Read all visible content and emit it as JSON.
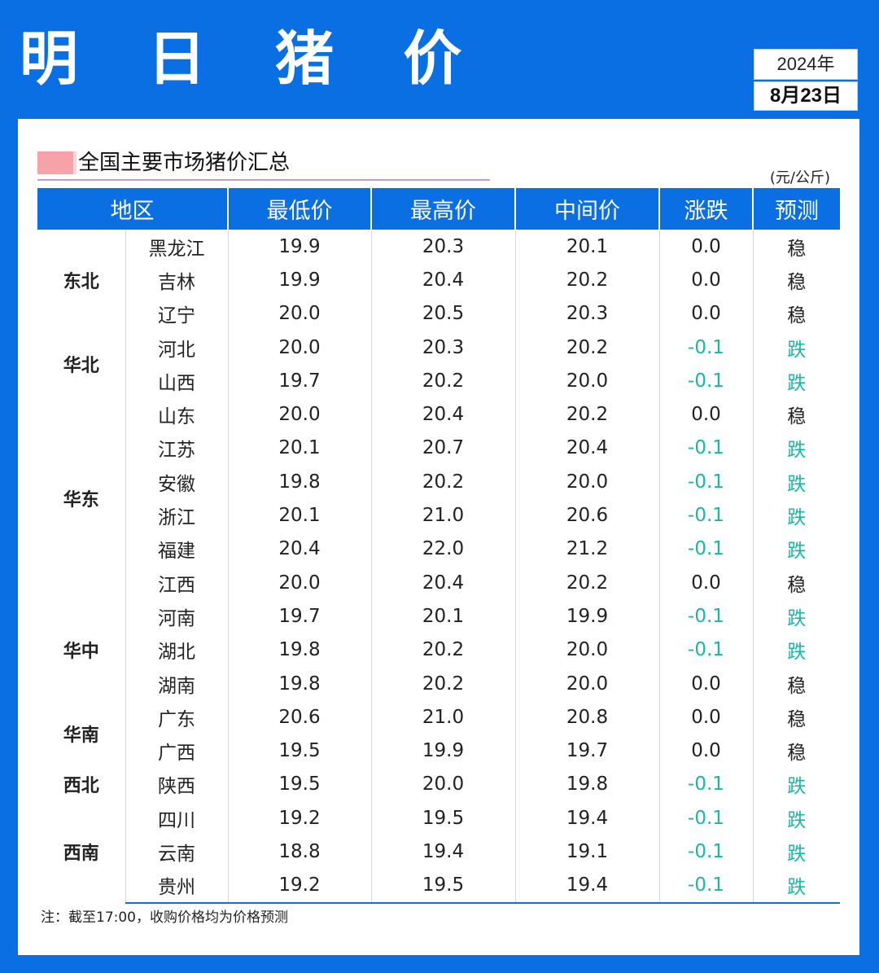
{
  "title": "明 日 猪 价",
  "date": {
    "year": "2024年",
    "day": "8月23日"
  },
  "section_title": "全国主要市场猪价汇总",
  "unit": "(元/公斤)",
  "colors": {
    "accent": "#0a6fe3",
    "down": "#17b7a6",
    "swatch": "#f5a3a8"
  },
  "columns": [
    "地区",
    "最低价",
    "最高价",
    "中间价",
    "涨跌",
    "预测"
  ],
  "rows": [
    {
      "region": "东北",
      "span": 3,
      "province": "黑龙江",
      "low": "19.9",
      "high": "20.3",
      "mid": "20.1",
      "change": "0.0",
      "forecast": "稳"
    },
    {
      "province": "吉林",
      "low": "19.9",
      "high": "20.4",
      "mid": "20.2",
      "change": "0.0",
      "forecast": "稳"
    },
    {
      "province": "辽宁",
      "low": "20.0",
      "high": "20.5",
      "mid": "20.3",
      "change": "0.0",
      "forecast": "稳"
    },
    {
      "region": "华北",
      "span": 2,
      "province": "河北",
      "low": "20.0",
      "high": "20.3",
      "mid": "20.2",
      "change": "-0.1",
      "forecast": "跌"
    },
    {
      "province": "山西",
      "low": "19.7",
      "high": "20.2",
      "mid": "20.0",
      "change": "-0.1",
      "forecast": "跌"
    },
    {
      "region": "华东",
      "span": 6,
      "province": "山东",
      "low": "20.0",
      "high": "20.4",
      "mid": "20.2",
      "change": "0.0",
      "forecast": "稳"
    },
    {
      "province": "江苏",
      "low": "20.1",
      "high": "20.7",
      "mid": "20.4",
      "change": "-0.1",
      "forecast": "跌"
    },
    {
      "province": "安徽",
      "low": "19.8",
      "high": "20.2",
      "mid": "20.0",
      "change": "-0.1",
      "forecast": "跌"
    },
    {
      "province": "浙江",
      "low": "20.1",
      "high": "21.0",
      "mid": "20.6",
      "change": "-0.1",
      "forecast": "跌"
    },
    {
      "province": "福建",
      "low": "20.4",
      "high": "22.0",
      "mid": "21.2",
      "change": "-0.1",
      "forecast": "跌"
    },
    {
      "province": "江西",
      "low": "20.0",
      "high": "20.4",
      "mid": "20.2",
      "change": "0.0",
      "forecast": "稳"
    },
    {
      "region": "华中",
      "span": 3,
      "province": "河南",
      "low": "19.7",
      "high": "20.1",
      "mid": "19.9",
      "change": "-0.1",
      "forecast": "跌"
    },
    {
      "province": "湖北",
      "low": "19.8",
      "high": "20.2",
      "mid": "20.0",
      "change": "-0.1",
      "forecast": "跌"
    },
    {
      "province": "湖南",
      "low": "19.8",
      "high": "20.2",
      "mid": "20.0",
      "change": "0.0",
      "forecast": "稳"
    },
    {
      "region": "华南",
      "span": 2,
      "province": "广东",
      "low": "20.6",
      "high": "21.0",
      "mid": "20.8",
      "change": "0.0",
      "forecast": "稳"
    },
    {
      "province": "广西",
      "low": "19.5",
      "high": "19.9",
      "mid": "19.7",
      "change": "0.0",
      "forecast": "稳"
    },
    {
      "region": "西北",
      "span": 1,
      "province": "陕西",
      "low": "19.5",
      "high": "20.0",
      "mid": "19.8",
      "change": "-0.1",
      "forecast": "跌"
    },
    {
      "region": "西南",
      "span": 3,
      "province": "四川",
      "low": "19.2",
      "high": "19.5",
      "mid": "19.4",
      "change": "-0.1",
      "forecast": "跌"
    },
    {
      "province": "云南",
      "low": "18.8",
      "high": "19.4",
      "mid": "19.1",
      "change": "-0.1",
      "forecast": "跌"
    },
    {
      "province": "贵州",
      "low": "19.2",
      "high": "19.5",
      "mid": "19.4",
      "change": "-0.1",
      "forecast": "跌"
    }
  ],
  "note": "注：截至17:00，收购价格均为价格预测"
}
